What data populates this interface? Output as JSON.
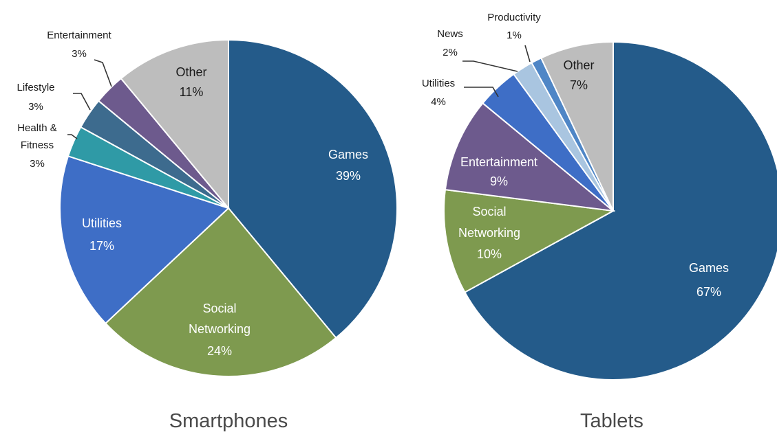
{
  "chart_data": [
    {
      "type": "pie",
      "title": "Smartphones",
      "slices": [
        {
          "label": "Games",
          "value": 39,
          "text": "39%",
          "color": "#245b8a"
        },
        {
          "label": "Social Networking",
          "value": 24,
          "text": "24%",
          "color": "#7e9a4f"
        },
        {
          "label": "Utilities",
          "value": 17,
          "text": "17%",
          "color": "#3e6ec6"
        },
        {
          "label": "Health & Fitness",
          "value": 3,
          "text": "3%",
          "color": "#2f9aa6"
        },
        {
          "label": "Lifestyle",
          "value": 3,
          "text": "3%",
          "color": "#3d6b8e"
        },
        {
          "label": "Entertainment",
          "value": 3,
          "text": "3%",
          "color": "#6d5a8d"
        },
        {
          "label": "Other",
          "value": 11,
          "text": "11%",
          "color": "#bdbdbd"
        }
      ]
    },
    {
      "type": "pie",
      "title": "Tablets",
      "slices": [
        {
          "label": "Games",
          "value": 67,
          "text": "67%",
          "color": "#245b8a"
        },
        {
          "label": "Social Networking",
          "value": 10,
          "text": "10%",
          "color": "#7e9a4f"
        },
        {
          "label": "Entertainment",
          "value": 9,
          "text": "9%",
          "color": "#6d5a8d"
        },
        {
          "label": "Utilities",
          "value": 4,
          "text": "4%",
          "color": "#3e6ec6"
        },
        {
          "label": "News",
          "value": 2,
          "text": "2%",
          "color": "#a9c5e0"
        },
        {
          "label": "Productivity",
          "value": 1,
          "text": "1%",
          "color": "#4f86c6"
        },
        {
          "label": "Other",
          "value": 7,
          "text": "7%",
          "color": "#bdbdbd"
        }
      ]
    }
  ]
}
